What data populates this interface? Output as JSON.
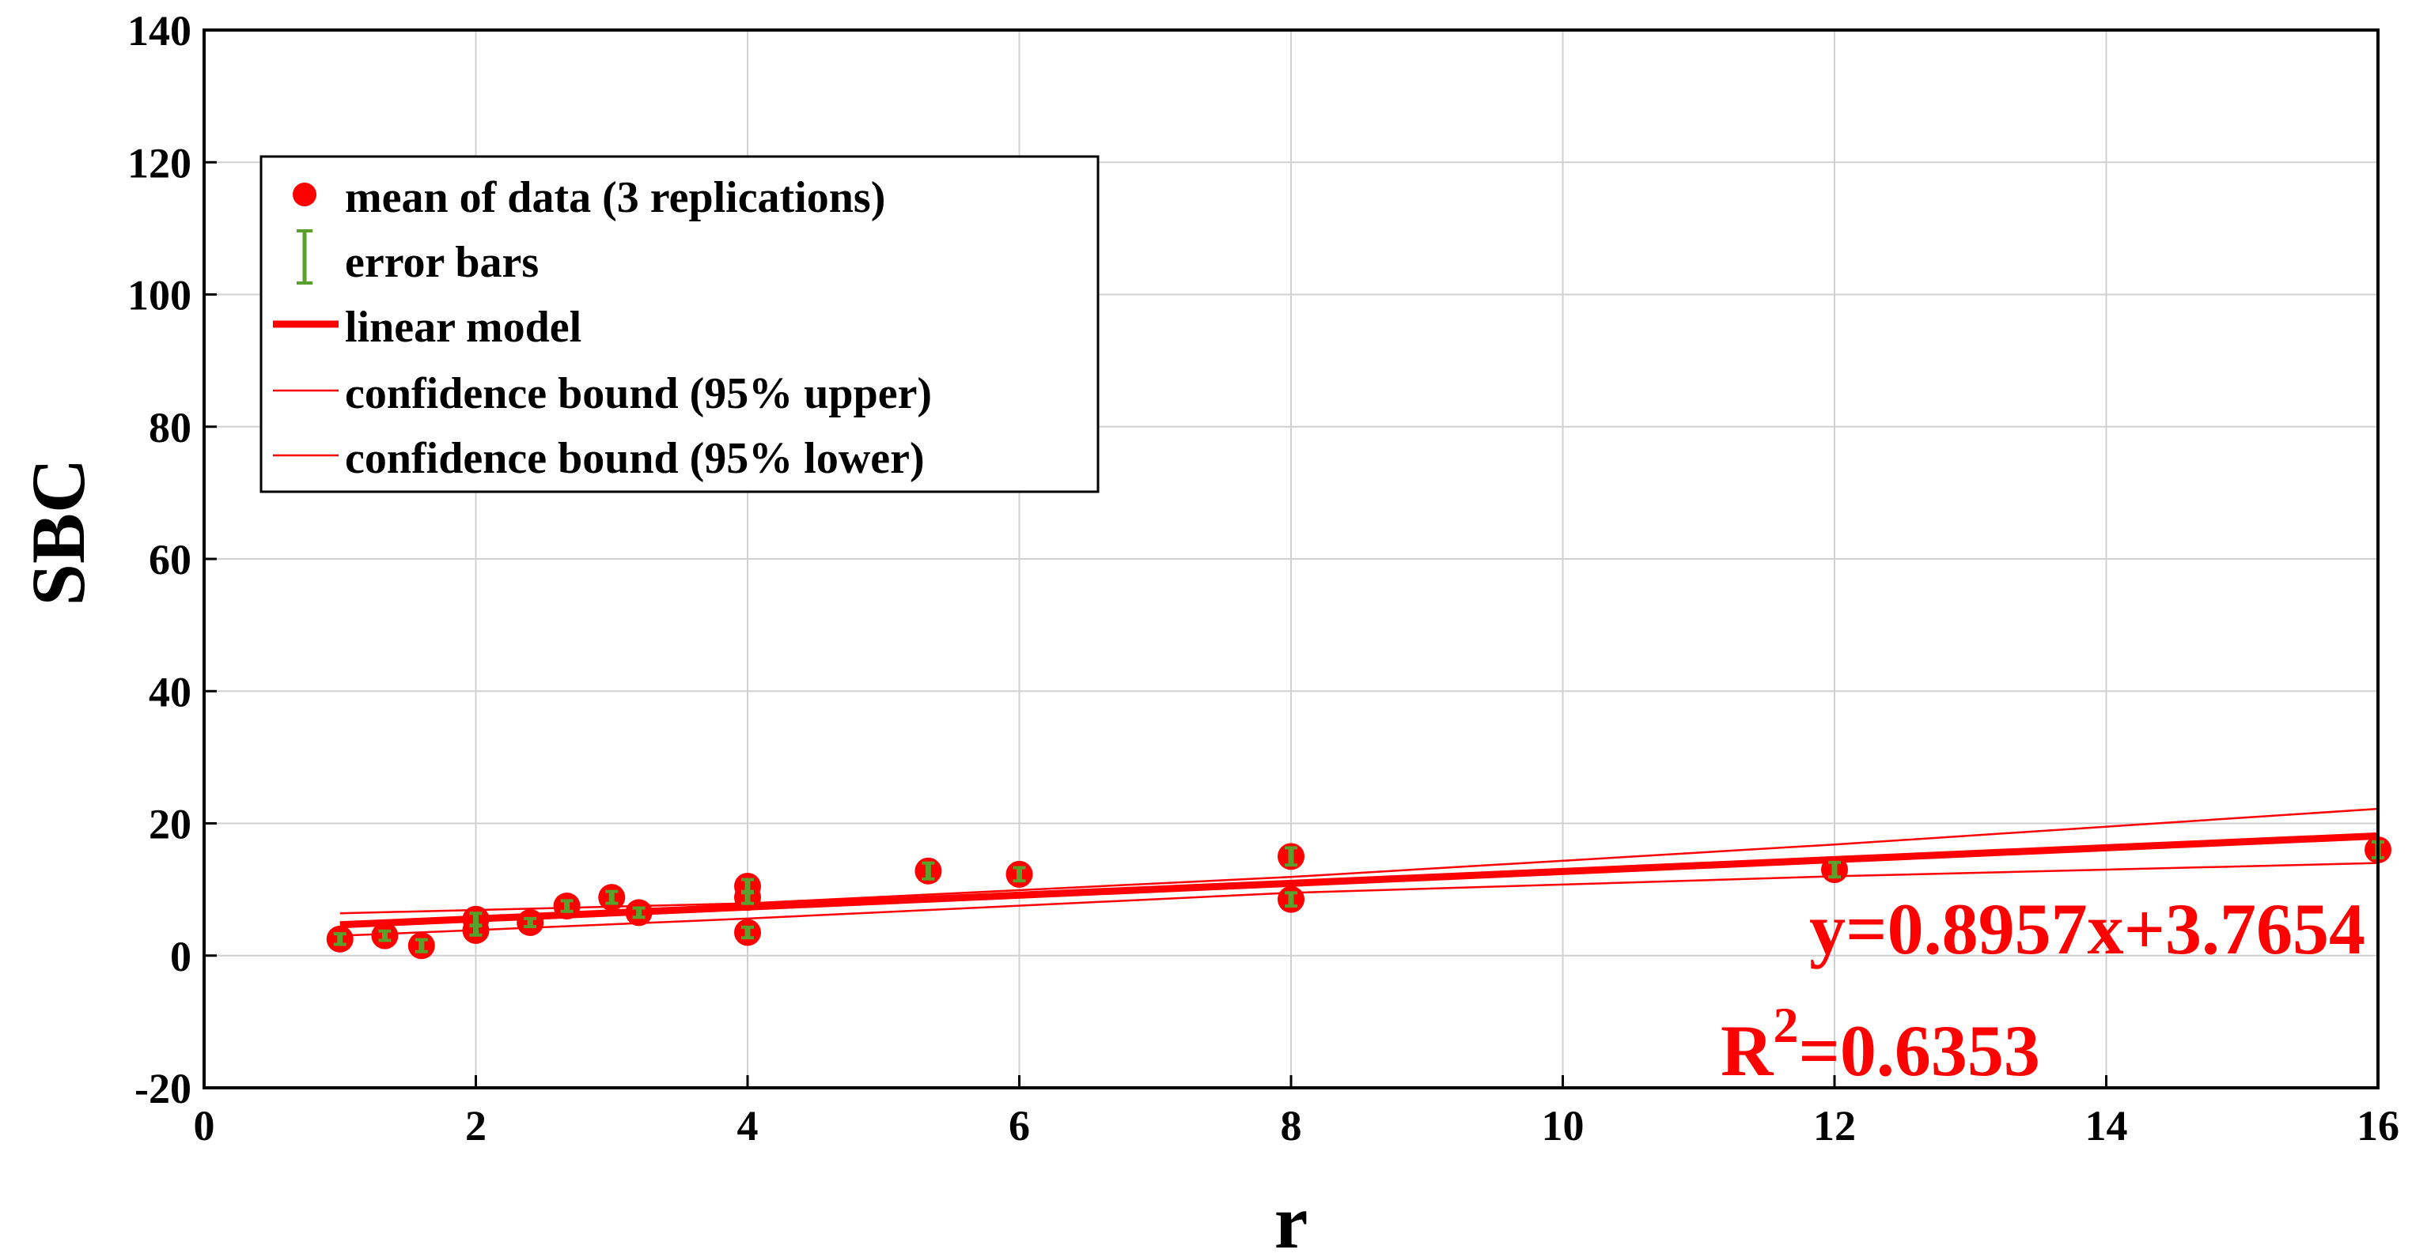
{
  "chart_data": {
    "type": "scatter",
    "title": "",
    "xlabel": "r",
    "ylabel": "SBC",
    "xlim": [
      0,
      16
    ],
    "ylim": [
      -20,
      140
    ],
    "xticks": [
      0,
      2,
      4,
      6,
      8,
      10,
      12,
      14,
      16
    ],
    "yticks": [
      -20,
      0,
      20,
      40,
      60,
      80,
      100,
      120,
      140
    ],
    "grid": true,
    "legend_position": "top-left",
    "colors": {
      "marker": "#ff0000",
      "error_bar": "#5aa02c",
      "line": "#ff0000"
    },
    "series": [
      {
        "name": "mean of data (3 replications)",
        "kind": "points",
        "x": [
          1.0,
          1.33,
          1.6,
          2.0,
          2.0,
          2.4,
          2.67,
          3.0,
          3.2,
          4.0,
          4.0,
          4.0,
          5.33,
          6.0,
          8.0,
          8.0,
          12.0,
          16.0
        ],
        "y": [
          2.5,
          3.0,
          1.5,
          5.5,
          3.8,
          5.0,
          7.5,
          8.8,
          6.5,
          10.5,
          8.8,
          3.5,
          12.8,
          12.3,
          15.0,
          8.5,
          13.0,
          16.0
        ]
      },
      {
        "name": "error bars",
        "kind": "error_bars",
        "x": [
          1.0,
          1.33,
          1.6,
          2.0,
          2.0,
          2.4,
          2.67,
          3.0,
          3.2,
          4.0,
          4.0,
          4.0,
          5.33,
          6.0,
          8.0,
          8.0,
          12.0,
          16.0
        ],
        "y": [
          2.5,
          3.0,
          1.5,
          5.5,
          3.8,
          5.0,
          7.5,
          8.8,
          6.5,
          10.5,
          8.8,
          3.5,
          12.8,
          12.3,
          15.0,
          8.5,
          13.0,
          16.0
        ],
        "err": [
          0.8,
          0.7,
          0.9,
          0.9,
          0.7,
          0.6,
          0.8,
          0.9,
          0.7,
          1.0,
          0.9,
          0.8,
          1.2,
          1.0,
          1.3,
          1.0,
          1.1,
          1.2
        ]
      },
      {
        "name": "linear model",
        "kind": "line",
        "x": [
          1,
          16
        ],
        "y": [
          4.66,
          18.1
        ]
      },
      {
        "name": "confidence bound (95% upper)",
        "kind": "line",
        "x": [
          1,
          4,
          8,
          12,
          16
        ],
        "y": [
          6.4,
          7.9,
          11.9,
          16.8,
          22.2
        ]
      },
      {
        "name": "confidence bound (95% lower)",
        "kind": "line",
        "x": [
          1,
          4,
          8,
          12,
          16
        ],
        "y": [
          3.0,
          5.6,
          9.5,
          12.0,
          14.0
        ]
      }
    ],
    "annotations": {
      "equation": "y=0.8957x+3.7654",
      "r2_prefix": "R",
      "r2_superscript": "2",
      "r2_value": "=0.6353"
    }
  }
}
